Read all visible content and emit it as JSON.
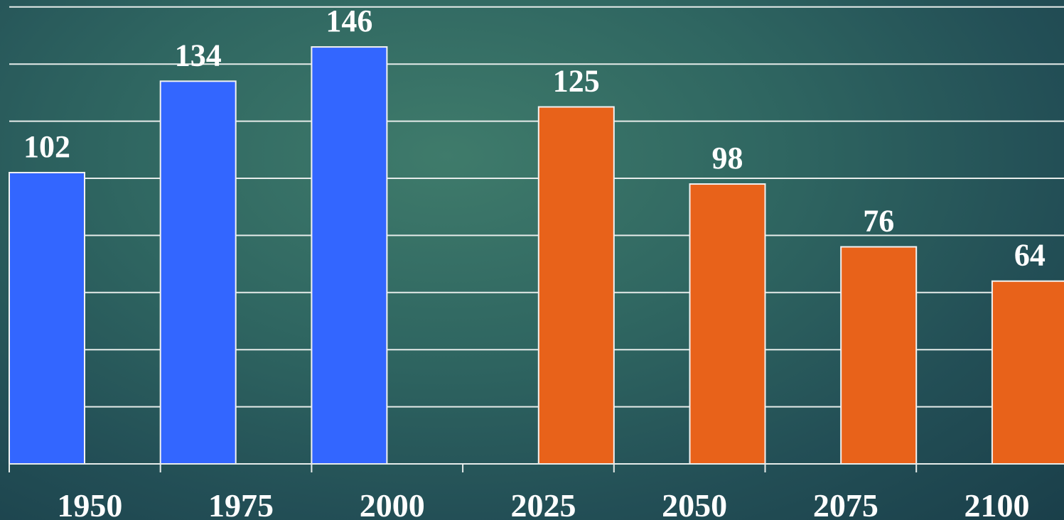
{
  "chart_data": {
    "type": "bar",
    "title": "",
    "xlabel": "",
    "ylabel": "",
    "categories": [
      "1950",
      "1975",
      "2000",
      "2025",
      "2050",
      "2075",
      "2100"
    ],
    "values": [
      102,
      134,
      146,
      125,
      98,
      76,
      64
    ],
    "value_labels": [
      "102",
      "134",
      "146",
      "125",
      "98",
      "76",
      "64"
    ],
    "bar_colors": [
      "#3366ff",
      "#3366ff",
      "#3366ff",
      "#e8621a",
      "#e8621a",
      "#e8621a",
      "#e8621a"
    ],
    "ylim": [
      0,
      160
    ],
    "grid": true,
    "legend": "none"
  },
  "colors": {
    "grid": "#e6ecea",
    "text": "#ffffff",
    "bar_outline": "#f2f2f2"
  }
}
